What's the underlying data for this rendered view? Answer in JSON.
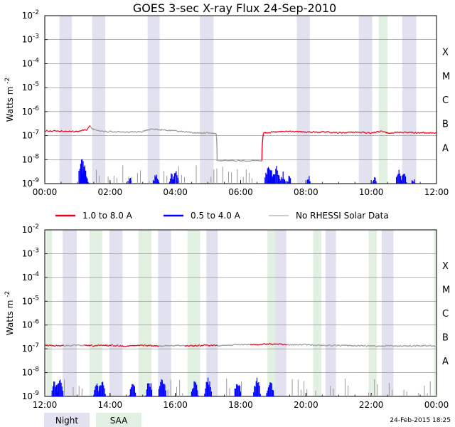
{
  "chart_data": {
    "type": "line",
    "title": "GOES 3-sec X-ray Flux   24-Sep-2010",
    "ylabel_base": "Watts m",
    "ylabel_exp": "-2",
    "y_scale": "log",
    "ylim": [
      1e-09,
      0.01
    ],
    "y_ticks": [
      {
        "base": "10",
        "exp": "-2"
      },
      {
        "base": "10",
        "exp": "-3"
      },
      {
        "base": "10",
        "exp": "-4"
      },
      {
        "base": "10",
        "exp": "-5"
      },
      {
        "base": "10",
        "exp": "-6"
      },
      {
        "base": "10",
        "exp": "-7"
      },
      {
        "base": "10",
        "exp": "-8"
      },
      {
        "base": "10",
        "exp": "-9"
      }
    ],
    "flare_classes": [
      "X",
      "M",
      "C",
      "B",
      "A"
    ],
    "legend": [
      "1.0 to 8.0 A",
      "0.5 to 4.0 A",
      "No RHESSI Solar Data"
    ],
    "colors": {
      "long": "#e8001c",
      "short": "#0000ff",
      "norhessi": "#999999",
      "night": "#e1e1f0",
      "saa": "#e1f0e1",
      "grid": "#888888"
    },
    "panels": [
      {
        "x_ticks": [
          "00:00",
          "02:00",
          "04:00",
          "06:00",
          "08:00",
          "10:00",
          "12:00"
        ],
        "xlim_hours": [
          0,
          12
        ],
        "night": [
          [
            0.45,
            0.83
          ],
          [
            1.45,
            1.85
          ],
          [
            3.15,
            3.52
          ],
          [
            4.75,
            5.17
          ],
          [
            7.72,
            8.12
          ],
          [
            9.62,
            10.03
          ],
          [
            10.95,
            11.38
          ]
        ],
        "saa": [
          [
            10.23,
            10.5
          ]
        ],
        "long_series_hours": [
          0,
          0.5,
          1.0,
          1.3,
          1.38,
          1.45,
          1.7,
          2.5,
          3.0,
          3.3,
          3.6,
          4.2,
          4.6,
          5.0,
          5.25,
          5.28,
          5.35,
          6.65,
          6.7,
          7.0,
          7.5,
          8.0,
          8.5,
          9.0,
          9.5,
          10.0,
          10.3,
          10.5,
          11.0,
          11.5,
          12.0
        ],
        "long_series_flux": [
          1.6e-07,
          1.5e-07,
          1.5e-07,
          1.8e-07,
          2.6e-07,
          1.9e-07,
          1.5e-07,
          1.4e-07,
          1.5e-07,
          1.9e-07,
          1.7e-07,
          1.5e-07,
          1.3e-07,
          1.3e-07,
          1.2e-07,
          9e-09,
          9e-09,
          9e-09,
          1.3e-07,
          1.4e-07,
          1.5e-07,
          1.4e-07,
          1.4e-07,
          1.3e-07,
          1.4e-07,
          1.3e-07,
          1.5e-07,
          1.3e-07,
          1.4e-07,
          1.3e-07,
          1.3e-07
        ],
        "norhessi_hours": [
          [
            1.4,
            6.6
          ]
        ],
        "short_bursts": [
          {
            "h": 1.15,
            "f": 1.1e-08
          },
          {
            "h": 1.2,
            "f": 5e-09
          },
          {
            "h": 1.25,
            "f": 3e-09
          },
          {
            "h": 1.3,
            "f": 2e-09
          },
          {
            "h": 2.6,
            "f": 2e-09
          },
          {
            "h": 3.4,
            "f": 3e-09
          },
          {
            "h": 3.9,
            "f": 3e-09
          },
          {
            "h": 4.0,
            "f": 4e-09
          },
          {
            "h": 6.85,
            "f": 6e-09
          },
          {
            "h": 6.95,
            "f": 4e-09
          },
          {
            "h": 7.1,
            "f": 5e-09
          },
          {
            "h": 7.3,
            "f": 3e-09
          },
          {
            "h": 7.5,
            "f": 2.5e-09
          },
          {
            "h": 8.1,
            "f": 2e-09
          },
          {
            "h": 10.1,
            "f": 2e-09
          },
          {
            "h": 10.85,
            "f": 4e-09
          },
          {
            "h": 11.0,
            "f": 3e-09
          },
          {
            "h": 11.3,
            "f": 2e-09
          }
        ]
      },
      {
        "x_ticks": [
          "12:00",
          "14:00",
          "16:00",
          "18:00",
          "20:00",
          "22:00",
          "00:00"
        ],
        "xlim_hours": [
          12,
          24
        ],
        "night": [
          [
            12.55,
            12.98
          ],
          [
            13.98,
            14.38
          ],
          [
            15.47,
            15.87
          ],
          [
            16.95,
            17.3
          ],
          [
            19.0,
            19.4
          ],
          [
            20.6,
            20.92
          ],
          [
            22.32,
            22.68
          ]
        ],
        "saa": [
          [
            12.05,
            12.22
          ],
          [
            13.37,
            13.76
          ],
          [
            14.87,
            15.27
          ],
          [
            16.37,
            16.76
          ],
          [
            18.82,
            19.05
          ],
          [
            20.22,
            20.47
          ],
          [
            21.92,
            22.17
          ],
          [
            23.92,
            24.0
          ]
        ],
        "long_series_hours": [
          12.0,
          12.5,
          13.0,
          13.5,
          14.0,
          14.5,
          15.0,
          15.5,
          16.0,
          16.5,
          17.0,
          17.5,
          18.0,
          18.5,
          19.0,
          19.5,
          20.0,
          20.5,
          21.0,
          21.5,
          22.0,
          22.5,
          23.0,
          23.5,
          24.0
        ],
        "long_series_flux": [
          1.4e-07,
          1.35e-07,
          1.4e-07,
          1.35e-07,
          1.4e-07,
          1.3e-07,
          1.4e-07,
          1.3e-07,
          1.4e-07,
          1.35e-07,
          1.4e-07,
          1.4e-07,
          1.5e-07,
          1.5e-07,
          1.6e-07,
          1.45e-07,
          1.5e-07,
          1.4e-07,
          1.4e-07,
          1.35e-07,
          1.3e-07,
          1.35e-07,
          1.3e-07,
          1.35e-07,
          1.3e-07
        ],
        "norhessi_hours": [
          [
            12.6,
            13.2
          ],
          [
            15.5,
            16.3
          ],
          [
            17.3,
            18.3
          ],
          [
            19.4,
            24.0
          ]
        ],
        "short_bursts": [
          {
            "h": 12.3,
            "f": 5e-09
          },
          {
            "h": 12.45,
            "f": 6e-09
          },
          {
            "h": 13.6,
            "f": 4e-09
          },
          {
            "h": 13.75,
            "f": 5e-09
          },
          {
            "h": 14.7,
            "f": 4e-09
          },
          {
            "h": 15.2,
            "f": 5e-09
          },
          {
            "h": 15.6,
            "f": 6e-09
          },
          {
            "h": 16.6,
            "f": 5e-09
          },
          {
            "h": 17.0,
            "f": 6e-09
          },
          {
            "h": 17.9,
            "f": 5e-09
          },
          {
            "h": 18.5,
            "f": 6e-09
          },
          {
            "h": 18.9,
            "f": 5e-09
          }
        ]
      }
    ],
    "footer_legend": [
      "Night",
      "SAA"
    ],
    "timestamp": "24-Feb-2015 18:25"
  }
}
